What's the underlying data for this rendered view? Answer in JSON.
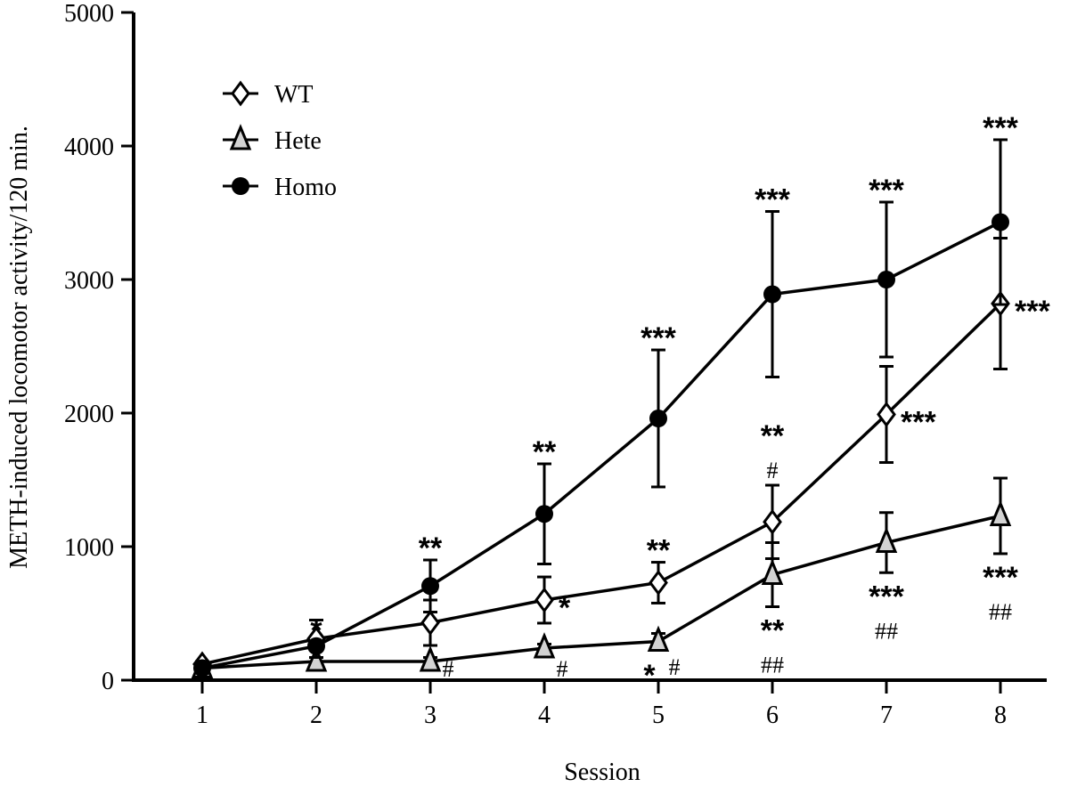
{
  "chart_data": {
    "type": "line",
    "title": "",
    "xlabel": "Session",
    "ylabel": "METH-induced locomotor activity/120 min.",
    "x": [
      1,
      2,
      3,
      4,
      5,
      6,
      7,
      8
    ],
    "xlim": [
      0.4,
      8.4
    ],
    "ylim": [
      0,
      5000
    ],
    "yticks": [
      0,
      1000,
      2000,
      3000,
      4000,
      5000
    ],
    "grid": false,
    "legend_position": "top-left",
    "series": [
      {
        "name": "WT",
        "marker": "open-diamond",
        "color": "#ffffff",
        "values": [
          120,
          310,
          430,
          600,
          730,
          1185,
          1990,
          2820
        ],
        "sem": [
          20,
          140,
          170,
          173,
          153,
          275,
          360,
          490
        ]
      },
      {
        "name": "Hete",
        "marker": "gray-triangle",
        "color": "#d3d3d3",
        "values": [
          90,
          140,
          140,
          240,
          290,
          790,
          1030,
          1230
        ],
        "sem": [
          15,
          30,
          30,
          30,
          60,
          240,
          225,
          283
        ]
      },
      {
        "name": "Homo",
        "marker": "filled-circle",
        "color": "#000000",
        "values": [
          90,
          255,
          705,
          1245,
          1960,
          2890,
          3000,
          3430
        ],
        "sem": [
          15,
          30,
          195,
          375,
          513,
          620,
          580,
          617
        ]
      }
    ],
    "annotations": [
      {
        "series": "Homo",
        "session": 2,
        "where": "above",
        "stars": "*"
      },
      {
        "series": "Homo",
        "session": 3,
        "where": "above",
        "stars": "**"
      },
      {
        "series": "Homo",
        "session": 4,
        "where": "above",
        "stars": "**"
      },
      {
        "series": "Homo",
        "session": 5,
        "where": "above",
        "stars": "***"
      },
      {
        "series": "Homo",
        "session": 6,
        "where": "above",
        "stars": "***"
      },
      {
        "series": "Homo",
        "session": 7,
        "where": "above",
        "stars": "***"
      },
      {
        "series": "Homo",
        "session": 8,
        "where": "above",
        "stars": "***"
      },
      {
        "series": "WT",
        "session": 4,
        "where": "right",
        "stars": "*"
      },
      {
        "series": "WT",
        "session": 5,
        "where": "above",
        "stars": "**"
      },
      {
        "series": "WT",
        "session": 6,
        "where": "above",
        "stars": "**",
        "hash": "#"
      },
      {
        "series": "WT",
        "session": 7,
        "where": "right",
        "stars": "***"
      },
      {
        "series": "WT",
        "session": 8,
        "where": "right",
        "stars": "***"
      },
      {
        "series": "Hete",
        "session": 3,
        "where": "right-low",
        "hash": "#"
      },
      {
        "series": "Hete",
        "session": 4,
        "where": "right-low",
        "hash": "#"
      },
      {
        "series": "Hete",
        "session": 5,
        "where": "below-inline",
        "stars": "*",
        "hash": "#"
      },
      {
        "series": "Hete",
        "session": 6,
        "where": "below",
        "stars": "**",
        "hash": "##"
      },
      {
        "series": "Hete",
        "session": 7,
        "where": "below",
        "stars": "***",
        "hash": "##"
      },
      {
        "series": "Hete",
        "session": 8,
        "where": "below",
        "stars": "***",
        "hash": "##"
      }
    ]
  }
}
